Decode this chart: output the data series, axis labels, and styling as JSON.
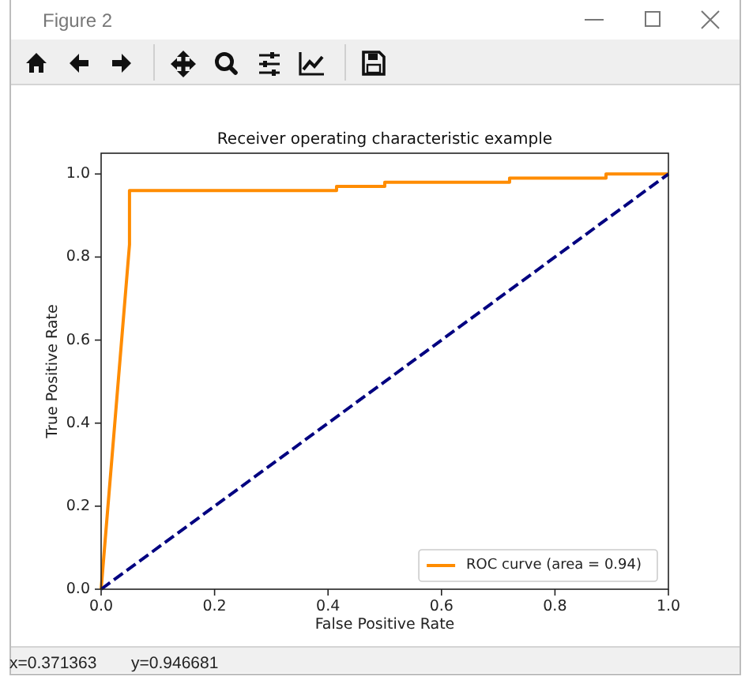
{
  "chart_data": {
    "type": "line",
    "title": "Receiver operating characteristic example",
    "xlabel": "False Positive Rate",
    "ylabel": "True Positive Rate",
    "xlim": [
      0,
      1
    ],
    "ylim": [
      0,
      1.05
    ],
    "xticks": [
      {
        "value": 0,
        "label": "0.0"
      },
      {
        "value": 0.2,
        "label": "0.2"
      },
      {
        "value": 0.4,
        "label": "0.4"
      },
      {
        "value": 0.6,
        "label": "0.6"
      },
      {
        "value": 0.8,
        "label": "0.8"
      },
      {
        "value": 1,
        "label": "1.0"
      }
    ],
    "yticks": [
      {
        "value": 0,
        "label": "0.0"
      },
      {
        "value": 0.2,
        "label": "0.2"
      },
      {
        "value": 0.4,
        "label": "0.4"
      },
      {
        "value": 0.6,
        "label": "0.6"
      },
      {
        "value": 0.8,
        "label": "0.8"
      },
      {
        "value": 1,
        "label": "1.0"
      }
    ],
    "series": [
      {
        "name": "ROC curve (area = 0.94)",
        "color": "#ff8c00",
        "line_style": "solid",
        "x": [
          0,
          0.05,
          0.05,
          0.415,
          0.415,
          0.5,
          0.5,
          0.72,
          0.72,
          0.89,
          0.89,
          1
        ],
        "values": [
          0,
          0.83,
          0.96,
          0.96,
          0.97,
          0.97,
          0.98,
          0.98,
          0.99,
          0.99,
          1,
          1
        ]
      },
      {
        "color": "#000080",
        "line_style": "dashed",
        "x": [
          0,
          1
        ],
        "values": [
          0,
          1
        ]
      }
    ],
    "legend": "bottom right",
    "annotations": [
      "Figure 2",
      "x=0.371363",
      "y=0.946681"
    ]
  }
}
